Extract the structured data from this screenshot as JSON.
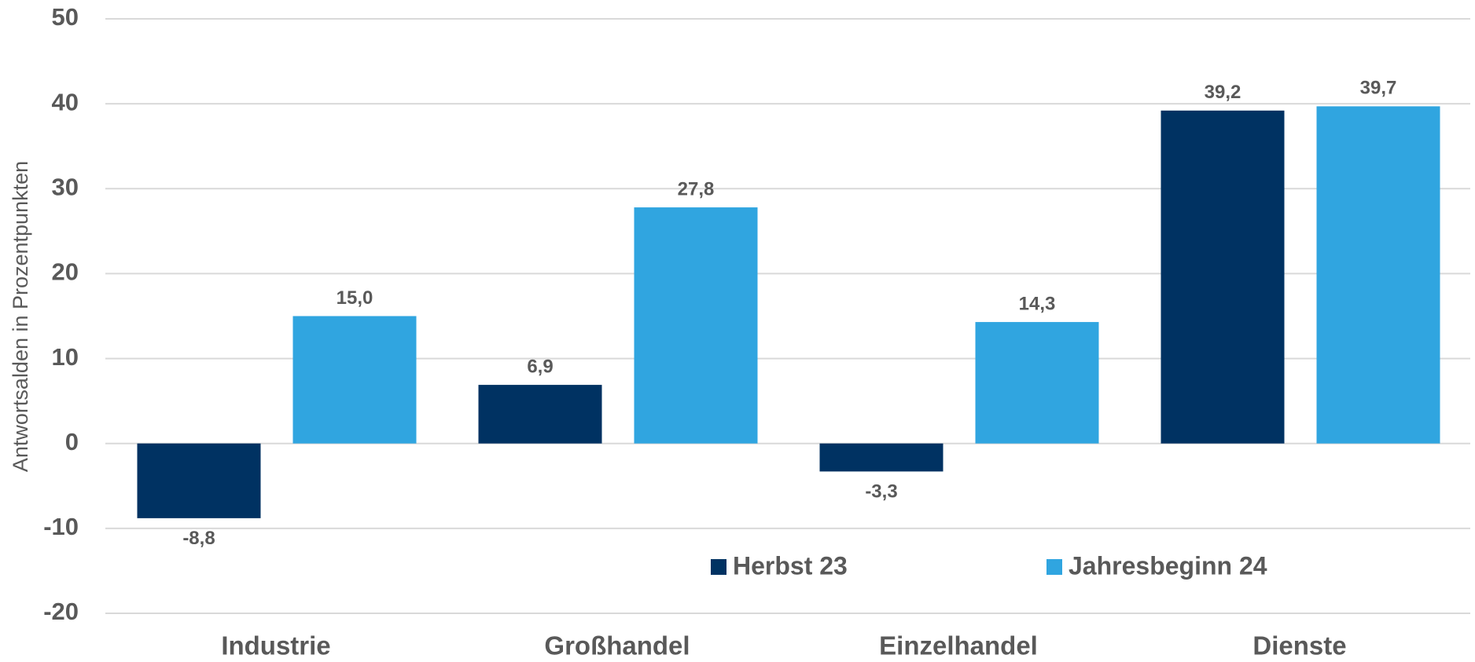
{
  "chart_data": {
    "type": "bar",
    "y_axis_label": "Antwortsalden in Prozentpunkten",
    "categories": [
      "Industrie",
      "Großhandel",
      "Einzelhandel",
      "Dienste"
    ],
    "series": [
      {
        "name": "Herbst 23",
        "color": "#003262",
        "values": [
          -8.8,
          6.9,
          -3.3,
          39.2
        ],
        "value_labels": [
          "-8,8",
          "6,9",
          "-3,3",
          "39,2"
        ]
      },
      {
        "name": "Jahresbeginn 24",
        "color": "#30a5e0",
        "values": [
          15.0,
          27.8,
          14.3,
          39.7
        ],
        "value_labels": [
          "15,0",
          "27,8",
          "14,3",
          "39,7"
        ]
      }
    ],
    "ylim": [
      -20,
      50
    ],
    "yticks": [
      -20,
      -10,
      0,
      10,
      20,
      30,
      40,
      50
    ],
    "grid": true,
    "legend": "bottom"
  }
}
